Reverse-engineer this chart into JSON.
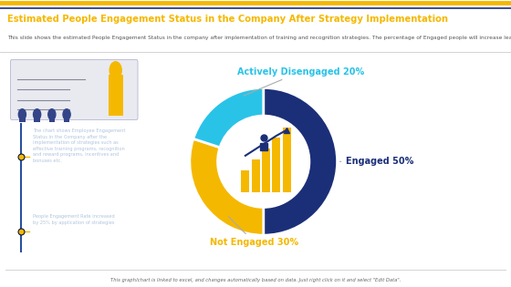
{
  "title": "Estimated People Engagement Status in the Company After Strategy Implementation",
  "subtitle": "This slide shows the estimated People Engagement Status in the company after implementation of training and recognition strategies. The percentage of Engaged people will increase leading to high productivity and higher employee satisfaction.",
  "footer": "This graph/chart is linked to excel, and changes automatically based on data. Just right click on it and select \"Edit Data\".",
  "slices": [
    50,
    30,
    20
  ],
  "labels": [
    "Engaged 50%",
    "Not Engaged 30%",
    "Actively Disengaged 20%"
  ],
  "colors": [
    "#1b2f78",
    "#f5b800",
    "#29c3e8"
  ],
  "startangle": 90,
  "bg_color": "#ffffff",
  "left_panel_color": "#0d2060",
  "title_color": "#f5b800",
  "title_fontsize": 7.2,
  "subtitle_color": "#555555",
  "subtitle_fontsize": 4.2,
  "bullet_text1": "The chart shows Employee Engagement\nStatus in the Company after the\nimplementation of strategies such as\neffective training programs, recognition\nand reward programs, incentives and\nbonuses etc.",
  "bullet_text2": "People Engagement Rate increased\nby 25% by application of strategies",
  "text_color": "#b0c4de",
  "bullet_dot_color": "#f5b800",
  "engaged_label_color": "#1b2f78",
  "not_engaged_label_color": "#f5b800",
  "disengaged_label_color": "#29c3e8",
  "footer_color": "#666666",
  "top_bar_color1": "#f5b800",
  "top_bar_color2": "#1b2f78",
  "separator_color": "#cccccc"
}
